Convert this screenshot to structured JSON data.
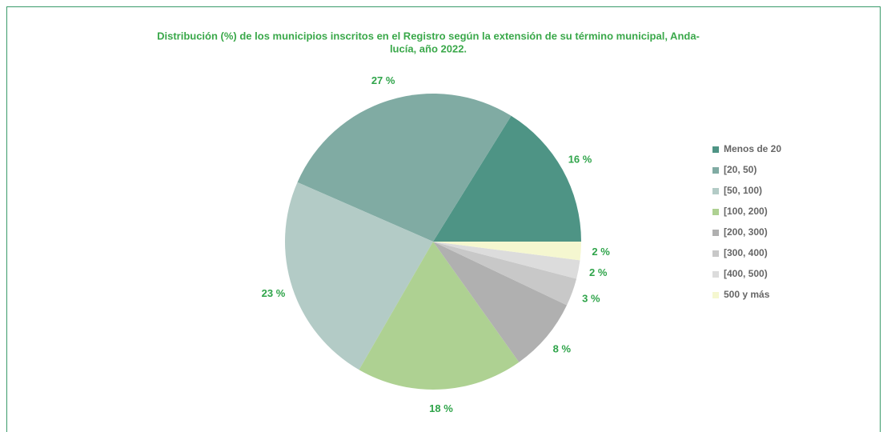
{
  "chart_data": {
    "type": "pie",
    "title": [
      "Distribución (%) de los municipios inscritos en el Registro según la extensión de su término municipal, Anda-",
      "lucía, año 2022."
    ],
    "categories": [
      "Menos de 20",
      "[20, 50)",
      "[50, 100)",
      "[100, 200)",
      "[200, 300)",
      "[300, 400)",
      "[400, 500)",
      "500 y más"
    ],
    "values": [
      16,
      27,
      23,
      18,
      8,
      3,
      2,
      2
    ],
    "value_labels": [
      "16 %",
      "27 %",
      "23 %",
      "18 %",
      "8 %",
      "3 %",
      "2 %",
      "2 %"
    ],
    "colors": [
      "#4e9485",
      "#80aba3",
      "#b3cbc6",
      "#aed192",
      "#b0b0b0",
      "#c8c8c8",
      "#dcdcdc",
      "#f5f7d0"
    ],
    "legend": "right"
  }
}
